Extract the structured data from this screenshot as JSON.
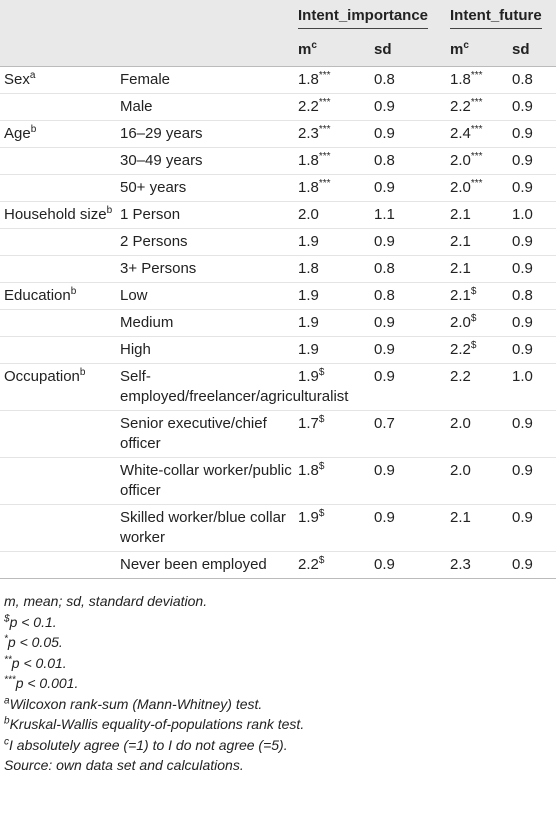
{
  "header": {
    "groups": [
      "Intent_importance",
      "Intent_future"
    ],
    "columns": [
      {
        "text": "m",
        "sup": "c"
      },
      "sd",
      {
        "text": "m",
        "sup": "c"
      },
      "sd"
    ]
  },
  "rows": [
    [
      {
        "text": "Sex",
        "sup": "a"
      },
      "Female",
      {
        "text": "1.8",
        "sup": "***"
      },
      "0.8",
      {
        "text": "1.8",
        "sup": "***"
      },
      "0.8"
    ],
    [
      null,
      "Male",
      {
        "text": "2.2",
        "sup": "***"
      },
      "0.9",
      {
        "text": "2.2",
        "sup": "***"
      },
      "0.9"
    ],
    [
      {
        "text": "Age",
        "sup": "b"
      },
      "16–29 years",
      {
        "text": "2.3",
        "sup": "***"
      },
      "0.9",
      {
        "text": "2.4",
        "sup": "***"
      },
      "0.9"
    ],
    [
      null,
      "30–49 years",
      {
        "text": "1.8",
        "sup": "***"
      },
      "0.8",
      {
        "text": "2.0",
        "sup": "***"
      },
      "0.9"
    ],
    [
      null,
      "50+ years",
      {
        "text": "1.8",
        "sup": "***"
      },
      "0.9",
      {
        "text": "2.0",
        "sup": "***"
      },
      "0.9"
    ],
    [
      {
        "text": "Household size",
        "sup": "b"
      },
      "1 Person",
      "2.0",
      "1.1",
      "2.1",
      "1.0"
    ],
    [
      null,
      "2 Persons",
      "1.9",
      "0.9",
      "2.1",
      "0.9"
    ],
    [
      null,
      "3+ Persons",
      "1.8",
      "0.8",
      "2.1",
      "0.9"
    ],
    [
      {
        "text": "Education",
        "sup": "b"
      },
      "Low",
      "1.9",
      "0.8",
      {
        "text": "2.1",
        "sup": "$"
      },
      "0.8"
    ],
    [
      null,
      "Medium",
      "1.9",
      "0.9",
      {
        "text": "2.0",
        "sup": "$"
      },
      "0.9"
    ],
    [
      null,
      "High",
      "1.9",
      "0.9",
      {
        "text": "2.2",
        "sup": "$"
      },
      "0.9"
    ],
    [
      {
        "text": "Occupation",
        "sup": "b"
      },
      "Self-employed/freelancer/agriculturalist",
      {
        "text": "1.9",
        "sup": "$"
      },
      "0.9",
      "2.2",
      "1.0"
    ],
    [
      null,
      "Senior executive/chief officer",
      {
        "text": "1.7",
        "sup": "$"
      },
      "0.7",
      "2.0",
      "0.9"
    ],
    [
      null,
      "White-collar worker/public officer",
      {
        "text": "1.8",
        "sup": "$"
      },
      "0.9",
      "2.0",
      "0.9"
    ],
    [
      null,
      "Skilled worker/blue collar worker",
      {
        "text": "1.9",
        "sup": "$"
      },
      "0.9",
      "2.1",
      "0.9"
    ],
    [
      null,
      "Never been employed",
      {
        "text": "2.2",
        "sup": "$"
      },
      "0.9",
      "2.3",
      "0.9"
    ]
  ],
  "footnotes": [
    "m, mean; sd, standard deviation.",
    {
      "sup": "$",
      "text": "p < 0.1."
    },
    {
      "sup": "*",
      "text": "p < 0.05."
    },
    {
      "sup": "**",
      "text": "p < 0.01."
    },
    {
      "sup": "***",
      "text": "p < 0.001."
    },
    {
      "sup": "a",
      "text": "Wilcoxon rank-sum (Mann-Whitney) test."
    },
    {
      "sup": "b",
      "text": "Kruskal-Wallis equality-of-populations rank test."
    },
    {
      "sup": "c",
      "text": "I absolutely agree (=1) to I do not agree (=5)."
    },
    "Source: own data set and calculations."
  ]
}
